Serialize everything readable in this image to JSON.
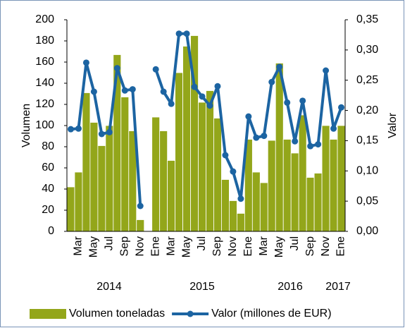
{
  "chart_data": {
    "type": "bar-line",
    "categories": [
      null,
      "Mar",
      null,
      "May",
      null,
      "Jul",
      null,
      "Sep",
      null,
      "Nov",
      null,
      "Ene",
      null,
      "Mar",
      null,
      "May",
      null,
      "Jul",
      null,
      "Sep",
      null,
      "Nov",
      null,
      "Ene",
      null,
      "Mar",
      null,
      "May",
      null,
      "Jul",
      null,
      "Sep",
      null,
      "Nov",
      null,
      "Ene"
    ],
    "years": [
      "2014",
      "2015",
      "2016",
      "2017"
    ],
    "y_label": "Volumen",
    "y2_label": "Valor",
    "series": [
      {
        "name": "Volumen toneladas",
        "type": "bar",
        "color": "#93a61a",
        "values": [
          42,
          56,
          131,
          103,
          81,
          100,
          167,
          127,
          95,
          11,
          null,
          108,
          95,
          67,
          150,
          175,
          185,
          122,
          133,
          107,
          49,
          29,
          17,
          87,
          56,
          46,
          86,
          159,
          87,
          74,
          110,
          51,
          55,
          100,
          87,
          100
        ]
      },
      {
        "name": "Valor (millones de EUR)",
        "type": "line",
        "axis": "y2",
        "color": "#1c64a2",
        "values": [
          0.169,
          0.17,
          0.279,
          0.231,
          0.161,
          0.164,
          0.27,
          0.233,
          0.235,
          0.042,
          null,
          0.268,
          0.231,
          0.211,
          0.327,
          0.327,
          0.239,
          0.223,
          0.208,
          0.24,
          0.126,
          0.099,
          0.054,
          0.19,
          0.155,
          0.158,
          0.247,
          0.272,
          0.213,
          0.149,
          0.216,
          0.141,
          0.144,
          0.266,
          0.17,
          0.205
        ]
      }
    ],
    "ylim": [
      0,
      200
    ],
    "yticks": [
      0,
      20,
      40,
      60,
      80,
      100,
      120,
      140,
      160,
      180,
      200
    ],
    "y2lim": [
      0,
      0.35
    ],
    "y2ticks": [
      {
        "value": 0,
        "label": "0,00"
      },
      {
        "value": 0.05,
        "label": "0,05"
      },
      {
        "value": 0.1,
        "label": "0,10"
      },
      {
        "value": 0.15,
        "label": "0,15"
      },
      {
        "value": 0.2,
        "label": "0,20"
      },
      {
        "value": 0.25,
        "label": "0,25"
      },
      {
        "value": 0.3,
        "label": "0,30"
      },
      {
        "value": 0.35,
        "label": "0,35"
      }
    ],
    "legend": "bottom"
  }
}
